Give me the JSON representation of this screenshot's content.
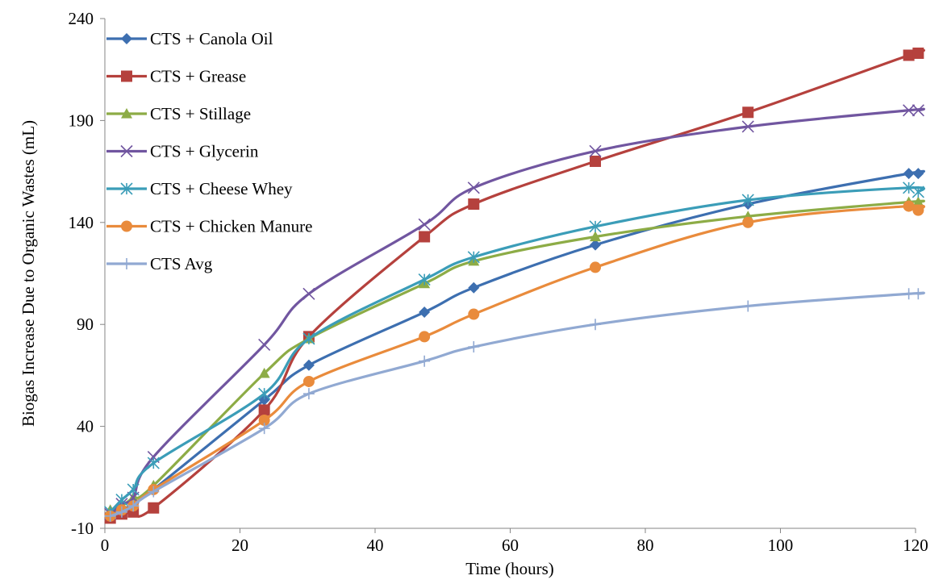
{
  "chart_data": {
    "type": "line",
    "x_label": "Time (hours)",
    "y_label": "Biogas Increase Due to Organic Wastes (mL)",
    "x": [
      0.8,
      2.5,
      4.2,
      7.2,
      23.6,
      30.2,
      47.3,
      54.6,
      72.6,
      95.2,
      119,
      120.4
    ],
    "xlim": [
      0,
      120
    ],
    "xticks": [
      0,
      20,
      40,
      60,
      80,
      100,
      120
    ],
    "ylim": [
      -10,
      240
    ],
    "yticks": [
      -10,
      40,
      90,
      140,
      190,
      240
    ],
    "grid": false,
    "legend": "top-left",
    "series": [
      {
        "name": "CTS + Canola Oil",
        "color": "#3d6fb0",
        "marker": "diamond",
        "values": [
          -3,
          -1,
          2,
          9,
          53,
          70,
          96,
          108,
          129,
          149,
          164,
          164
        ]
      },
      {
        "name": "CTS + Grease",
        "color": "#b5413d",
        "marker": "square",
        "values": [
          -5,
          -3,
          -2,
          0,
          48,
          84,
          133,
          149,
          170,
          194,
          222,
          223
        ]
      },
      {
        "name": "CTS + Stillage",
        "color": "#8dac46",
        "marker": "triangle",
        "values": [
          -1,
          1,
          5,
          11,
          66,
          83,
          110,
          121,
          133,
          143,
          150,
          150
        ]
      },
      {
        "name": "CTS + Glycerin",
        "color": "#7156a0",
        "marker": "x",
        "values": [
          -3,
          2,
          5,
          25,
          80,
          105,
          139,
          157,
          175,
          187,
          195,
          195
        ]
      },
      {
        "name": "CTS + Cheese Whey",
        "color": "#3b9db8",
        "marker": "asterisk",
        "values": [
          -2,
          4,
          9,
          22,
          56,
          83,
          112,
          123,
          138,
          151,
          157,
          155
        ]
      },
      {
        "name": "CTS + Chicken Manure",
        "color": "#e98b3c",
        "marker": "circle",
        "values": [
          -4,
          -1,
          1,
          9,
          43,
          62,
          84,
          95,
          118,
          140,
          148,
          146
        ]
      },
      {
        "name": "CTS Avg",
        "color": "#91a9d2",
        "marker": "plus",
        "values": [
          -4,
          -2,
          1,
          8,
          39,
          56,
          72,
          79,
          90,
          99,
          105,
          105
        ]
      }
    ]
  }
}
